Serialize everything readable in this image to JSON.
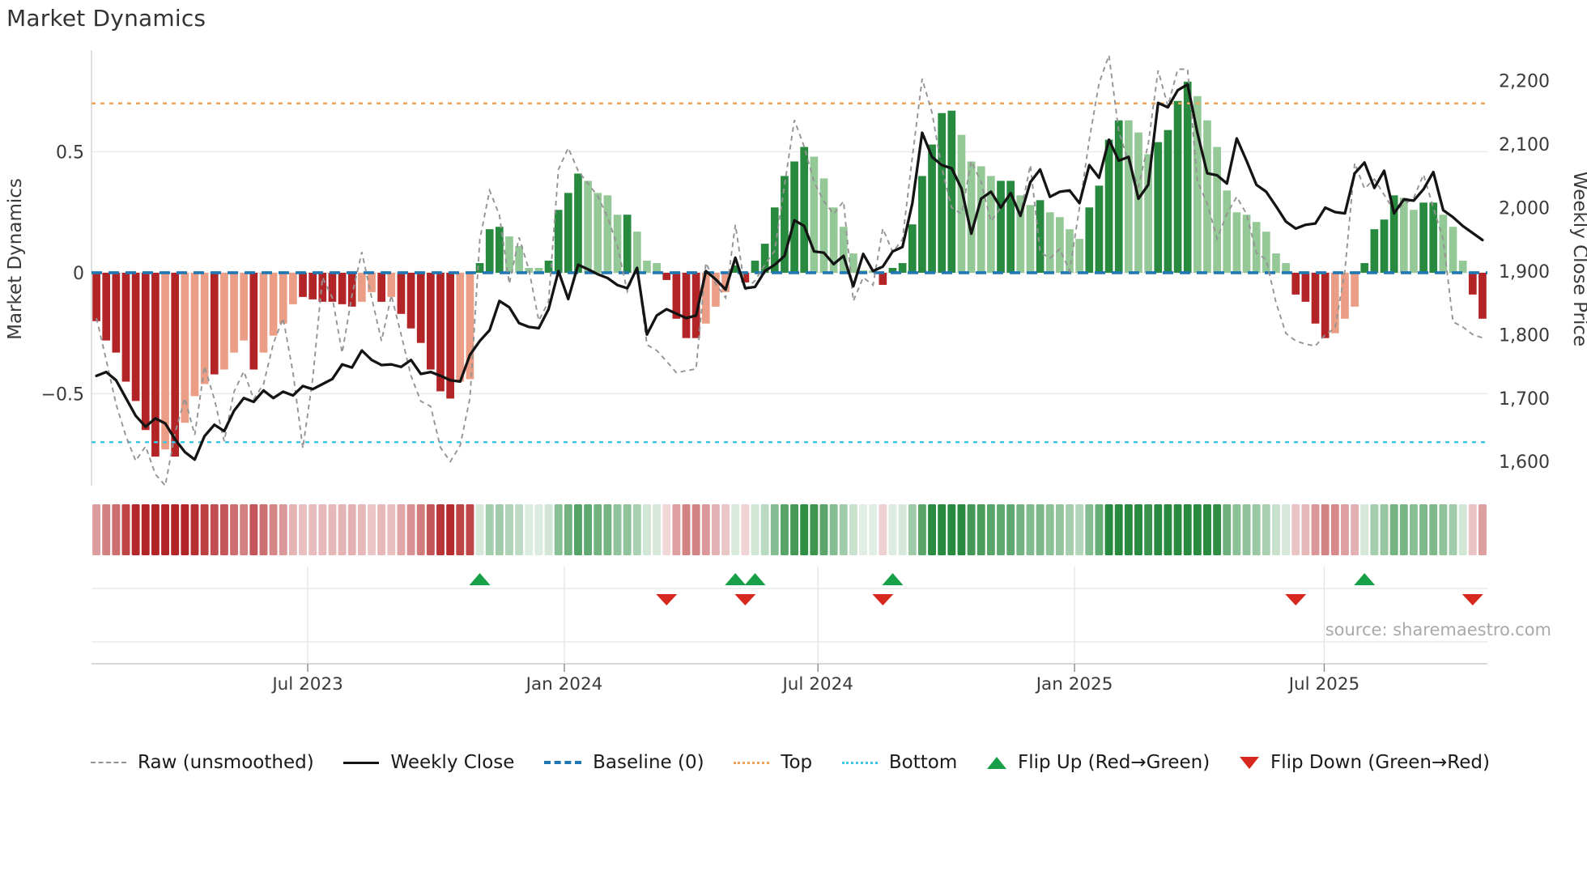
{
  "title": "Market Dynamics",
  "source": "source: sharemaestro.com",
  "legend": {
    "items": [
      {
        "label": "Raw (unsmoothed)",
        "swatch": "raw-line"
      },
      {
        "label": "Weekly Close",
        "swatch": "close-line"
      },
      {
        "label": "Baseline (0)",
        "swatch": "baseline"
      },
      {
        "label": "Top",
        "swatch": "top-threshold"
      },
      {
        "label": "Bottom",
        "swatch": "bottom-threshold"
      },
      {
        "label": "Flip Up (Red→Green)",
        "swatch": "flip-up-marker"
      },
      {
        "label": "Flip Down (Green→Red)",
        "swatch": "flip-down-marker"
      }
    ]
  },
  "axes": {
    "left_label": "Market Dynamics",
    "right_label": "Weekly Close Price",
    "left_ticks": [
      {
        "value": 0.5,
        "label": "0.5"
      },
      {
        "value": 0,
        "label": "0"
      },
      {
        "value": -0.5,
        "label": "−0.5"
      }
    ],
    "right_ticks": [
      {
        "value": 2200,
        "label": "2,200"
      },
      {
        "value": 2100,
        "label": "2,100"
      },
      {
        "value": 2000,
        "label": "2,000"
      },
      {
        "value": 1900,
        "label": "1,900"
      },
      {
        "value": 1800,
        "label": "1,800"
      },
      {
        "value": 1700,
        "label": "1,700"
      },
      {
        "value": 1600,
        "label": "1,600"
      }
    ],
    "x_ticks": [
      {
        "label": "Jul 2023",
        "week": 21.5
      },
      {
        "label": "Jan 2024",
        "week": 47.6
      },
      {
        "label": "Jul 2024",
        "week": 73.4
      },
      {
        "label": "Jan 2025",
        "week": 99.5
      },
      {
        "label": "Jul 2025",
        "week": 124.9
      }
    ]
  },
  "colors": {
    "bar_dark_red": "#b32427",
    "bar_light_red": "#eb9e85",
    "bar_dark_green": "#288a3e",
    "bar_light_green": "#95c897",
    "baseline": "#1f77b4",
    "top": "#f0a359",
    "bottom": "#3ec6e8",
    "raw": "#949494",
    "close": "#141414",
    "flip_up": "#18a048",
    "flip_down": "#d7281f",
    "grid": "#e8e8e8",
    "spine": "#cccccc",
    "tick_text": "#3a3a3a"
  },
  "chart_data": {
    "type": "bar",
    "subtype": "weekly oscillator bars + close/raw price lines + heatmap strip + flip markers",
    "n_weeks": 142,
    "ylim_left": [
      -0.88,
      0.92
    ],
    "ylim_right": [
      1562,
      2248
    ],
    "thresholds": {
      "baseline": 0,
      "top": 0.7,
      "bottom": -0.7
    },
    "osc": [
      -0.2,
      -0.28,
      -0.33,
      -0.45,
      -0.53,
      -0.65,
      -0.76,
      -0.73,
      -0.76,
      -0.62,
      -0.51,
      -0.46,
      -0.42,
      -0.4,
      -0.33,
      -0.28,
      -0.4,
      -0.33,
      -0.26,
      -0.21,
      -0.13,
      -0.1,
      -0.11,
      -0.12,
      -0.12,
      -0.13,
      -0.14,
      -0.12,
      -0.08,
      -0.12,
      -0.1,
      -0.17,
      -0.23,
      -0.29,
      -0.4,
      -0.49,
      -0.52,
      -0.45,
      -0.44,
      0.04,
      0.18,
      0.19,
      0.15,
      0.11,
      0.02,
      0.02,
      0.05,
      0.26,
      0.33,
      0.41,
      0.38,
      0.33,
      0.32,
      0.24,
      0.24,
      0.17,
      0.05,
      0.04,
      -0.03,
      -0.19,
      -0.27,
      -0.27,
      -0.21,
      -0.14,
      -0.08,
      0.03,
      -0.04,
      0.05,
      0.12,
      0.27,
      0.4,
      0.46,
      0.52,
      0.48,
      0.39,
      0.27,
      0.19,
      0.08,
      0.01,
      0.01,
      -0.05,
      0.02,
      0.04,
      0.2,
      0.4,
      0.53,
      0.66,
      0.67,
      0.57,
      0.46,
      0.44,
      0.4,
      0.38,
      0.38,
      0.32,
      0.28,
      0.3,
      0.25,
      0.23,
      0.18,
      0.14,
      0.27,
      0.36,
      0.55,
      0.63,
      0.63,
      0.58,
      0.49,
      0.54,
      0.59,
      0.71,
      0.79,
      0.73,
      0.63,
      0.52,
      0.34,
      0.25,
      0.24,
      0.21,
      0.17,
      0.08,
      0.04,
      -0.09,
      -0.12,
      -0.21,
      -0.27,
      -0.25,
      -0.19,
      -0.14,
      0.04,
      0.18,
      0.22,
      0.32,
      0.31,
      0.26,
      0.29,
      0.29,
      0.24,
      0.19,
      0.05,
      -0.09,
      -0.19
    ],
    "shade": "dddddddldllldllldlllllddddddlldlddddddllddlllldddullldllldd",
    "shade_full": "dddddddldllldllldllllddddddlldlddddddllddllllddddlllldllld1",
    "shade_pattern": "dddddddldllldllldllllddddddlldlddddddllddllllddddlllldllldddddlllddddddddlllllllddddddddllllddlldllllddddllldddddllllllllllddddllldddd1",
    "shades": "dddddddldllldllldllllddddddlldlddddddllddllllddddlllldllldddddlllddddddddlllllllddddddddllllddlldlllldddlllddddllllllllllddddllldddd",
    "bar_shades": "dddddddldllldlllldddd",
    "shade_string": "dddddddldllldllldlllldddddd",
    "bar_shade_string": "dddddddldllldllldlllddddddlld",
    "shade_chars": "dddddddldllldllldlllddddddlldlddddddllddllllddddllll",
    "bar_shade": "dddddddldllldllldllllddddddlldlddddddlldddlllldddd",
    "shade_codes": "dddddddldl lldllldlll lddddddlld lddddddlld ddlllldddd lllldllldd ddlllddddd dddlllllll ddddddddll llddlldlll lddddllldd ddllllllll llddddllld dddllddlll dd",
    "close": [
      1735,
      1741,
      1728,
      1700,
      1672,
      1655,
      1668,
      1660,
      1635,
      1615,
      1603,
      1640,
      1658,
      1648,
      1680,
      1700,
      1694,
      1712,
      1700,
      1710,
      1704,
      1719,
      1714,
      1722,
      1730,
      1753,
      1748,
      1775,
      1760,
      1752,
      1753,
      1749,
      1760,
      1738,
      1741,
      1735,
      1728,
      1726,
      1768,
      1790,
      1807,
      1853,
      1843,
      1818,
      1812,
      1810,
      1840,
      1900,
      1856,
      1910,
      1903,
      1895,
      1889,
      1878,
      1873,
      1905,
      1800,
      1830,
      1840,
      1833,
      1826,
      1830,
      1900,
      1887,
      1871,
      1921,
      1873,
      1875,
      1900,
      1910,
      1924,
      1980,
      1971,
      1931,
      1929,
      1911,
      1924,
      1876,
      1927,
      1900,
      1907,
      1931,
      1938,
      2007,
      2118,
      2080,
      2067,
      2062,
      2030,
      1959,
      2014,
      2025,
      2000,
      2023,
      1987,
      2040,
      2060,
      2017,
      2025,
      2027,
      2007,
      2067,
      2047,
      2107,
      2074,
      2080,
      2014,
      2036,
      2165,
      2158,
      2185,
      2194,
      2118,
      2054,
      2051,
      2038,
      2109,
      2074,
      2036,
      2025,
      2002,
      1978,
      1967,
      1973,
      1975,
      2000,
      1993,
      1991,
      2054,
      2071,
      2031,
      2058,
      1991,
      2013,
      2011,
      2029,
      2056,
      1996,
      1985,
      1971,
      1960,
      1949
    ],
    "raw": [
      1826,
      1760,
      1690,
      1640,
      1601,
      1624,
      1580,
      1562,
      1645,
      1700,
      1642,
      1750,
      1698,
      1632,
      1710,
      1742,
      1698,
      1722,
      1786,
      1826,
      1740,
      1621,
      1730,
      1890,
      1858,
      1771,
      1862,
      1930,
      1858,
      1790,
      1862,
      1800,
      1735,
      1695,
      1687,
      1622,
      1600,
      1625,
      1700,
      1950,
      2027,
      1988,
      1880,
      1953,
      1902,
      1822,
      1852,
      2060,
      2094,
      2058,
      2038,
      2018,
      1985,
      1940,
      1868,
      1905,
      1784,
      1775,
      1758,
      1740,
      1743,
      1746,
      1913,
      1880,
      1858,
      1973,
      1870,
      1885,
      1910,
      1932,
      2035,
      2138,
      2096,
      2040,
      2010,
      1990,
      2010,
      1853,
      1890,
      1878,
      1967,
      1930,
      1950,
      2080,
      2203,
      2150,
      2062,
      2000,
      1990,
      2073,
      2040,
      1978,
      2000,
      2023,
      1990,
      2067,
      1930,
      1920,
      1935,
      1900,
      2000,
      2107,
      2196,
      2240,
      2120,
      2072,
      2033,
      2100,
      2216,
      2160,
      2218,
      2218,
      2042,
      2006,
      1951,
      1990,
      2017,
      1990,
      1929,
      1918,
      1850,
      1802,
      1790,
      1785,
      1782,
      1800,
      1810,
      1900,
      2070,
      2030,
      2045,
      2020,
      1995,
      2005,
      2015,
      2052,
      2000,
      1950,
      1820,
      1812,
      1800,
      1795
    ],
    "flip_up_weeks": [
      39,
      65,
      67,
      81,
      129
    ],
    "flip_down_weeks": [
      58,
      66,
      80,
      122,
      140
    ]
  }
}
